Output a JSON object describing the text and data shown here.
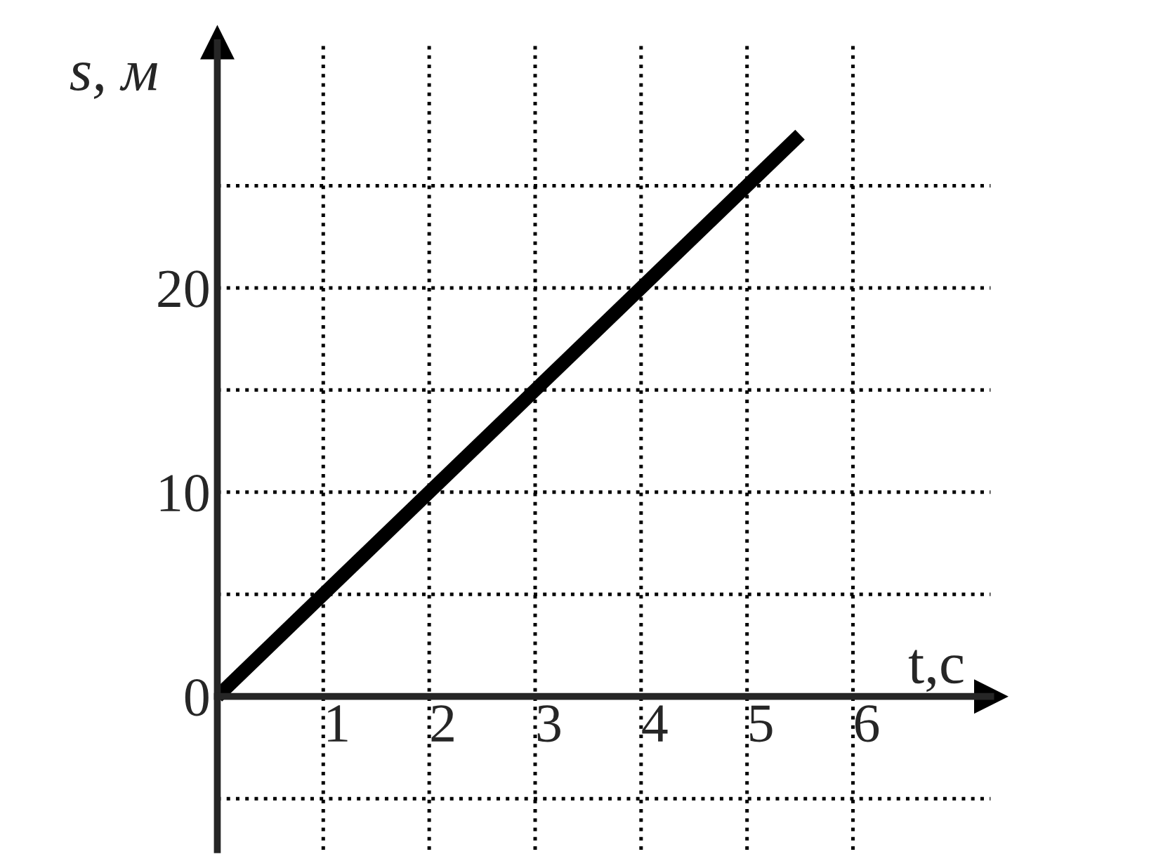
{
  "chart_data": {
    "type": "line",
    "xlabel": "t,c",
    "ylabel": "s, м",
    "x": [
      0,
      5.5
    ],
    "series": [
      {
        "color": "#000000",
        "values": [
          0,
          27.5
        ]
      }
    ],
    "xlim": [
      0,
      7.3
    ],
    "ylim": [
      -7.5,
      32
    ],
    "xticks": [
      1,
      2,
      3,
      4,
      5,
      6
    ],
    "yticks": [
      {
        "value": -5,
        "label": null
      },
      0,
      {
        "value": 5,
        "label": null
      },
      10,
      {
        "value": 15,
        "label": null
      },
      20,
      {
        "value": 25,
        "label": null
      }
    ],
    "grid": true
  }
}
